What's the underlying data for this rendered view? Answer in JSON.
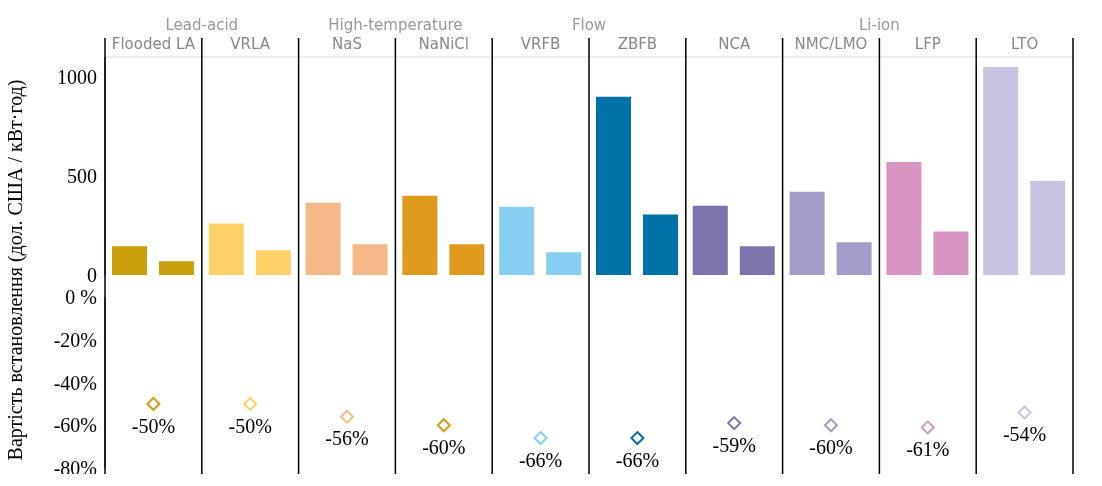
{
  "chart_data": [
    {
      "type": "bar",
      "ylabel": "Вартість встановлення (дол. США / кВт·год)",
      "categories": [
        "Flooded LA",
        "VRLA",
        "NaS",
        "NaNiCl",
        "VRFB",
        "ZBFB",
        "NCA",
        "NMC/LMO",
        "LFP",
        "LTO"
      ],
      "series": [
        {
          "colors": [
            "#c9a00c",
            "#fdd068",
            "#f6b889",
            "#dd9a1c",
            "#86cff2",
            "#0072a8",
            "#7c75ad",
            "#a39cc8",
            "#d895c1",
            "#c9c3e2"
          ],
          "values": [
            145,
            260,
            365,
            400,
            345,
            900,
            350,
            420,
            570,
            1050
          ]
        },
        {
          "colors": [
            "#c9a00c",
            "#fdd068",
            "#f6b889",
            "#dd9a1c",
            "#86cff2",
            "#0072a8",
            "#7c75ad",
            "#a39cc8",
            "#d895c1",
            "#c9c3e2"
          ],
          "values": [
            70,
            125,
            155,
            155,
            115,
            305,
            145,
            165,
            220,
            475
          ]
        }
      ],
      "ylim": [
        0,
        1100
      ],
      "yticks": [
        0,
        500,
        1000
      ],
      "grid": "x",
      "annotations": [
        "Lead-acid",
        "High-temperature",
        "Flow",
        "Li-ion"
      ]
    },
    {
      "type": "scatter",
      "categories": [
        null,
        null,
        null,
        null,
        null,
        null,
        null,
        null,
        null,
        null
      ],
      "values": [
        -50,
        -50,
        -56,
        -60,
        -66,
        -66,
        -59,
        -60,
        -61,
        -54
      ],
      "colors": [
        "#c9a00c",
        "#fdd068",
        "#f6b889",
        "#dd9a1c",
        "#86cff2",
        "#0072a8",
        "#7c75ad",
        "#a39cc8",
        "#d895c1",
        "#c9c3e2"
      ],
      "value_labels": [
        "-50%",
        "-50%",
        "-56%",
        "-60%",
        "-66%",
        "-66%",
        "-59%",
        "-60%",
        "-61%",
        "-54%"
      ],
      "ylim": [
        -80,
        0
      ],
      "yticks": [
        {
          "value": 0,
          "label": "0 %"
        },
        {
          "value": -20,
          "label": "-20%"
        },
        {
          "value": -40,
          "label": "-40%"
        },
        {
          "value": -60,
          "label": "-60%"
        },
        {
          "value": -80,
          "label": "-80%"
        }
      ],
      "marker": "diamond",
      "tick_labels": "y",
      "grid": "x"
    }
  ]
}
